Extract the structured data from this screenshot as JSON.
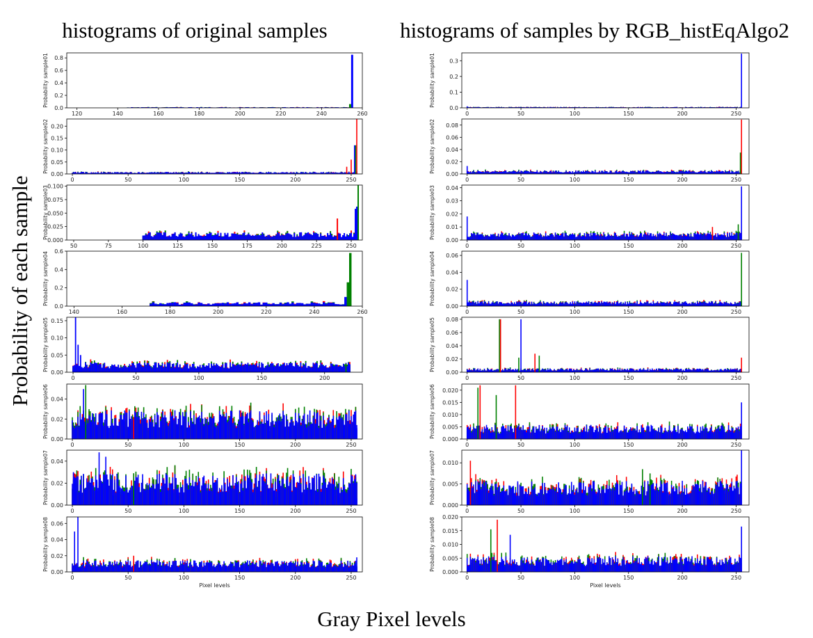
{
  "figure": {
    "left_title": "histograms of original samples",
    "right_title": "histograms of samples by RGB_histEqAlgo2",
    "y_title": "Probability of each sample",
    "x_title": "Gray Pixel levels",
    "panel_xlabel": "Pixel levels"
  },
  "colors": {
    "red": "#ff0000",
    "green": "#008000",
    "blue": "#0000ff"
  },
  "chart_data": [
    {
      "type": "bar",
      "panel": "left-1",
      "ylabel": "Probability sample01",
      "xlim": [
        115,
        260
      ],
      "xticks": [
        120,
        140,
        160,
        180,
        200,
        220,
        240,
        260
      ],
      "ylim": [
        0,
        0.88
      ],
      "yticks": [
        0.0,
        0.2,
        0.4,
        0.6,
        0.8
      ],
      "ytick_labels": [
        "0.0",
        "0.2",
        "0.4",
        "0.6",
        "0.8"
      ],
      "support": [
        145,
        255
      ],
      "peaks": [
        {
          "x": 255,
          "c": "blue",
          "v": 0.85
        },
        {
          "x": 254,
          "c": "green",
          "v": 0.06
        }
      ],
      "base_level": 0.008
    },
    {
      "type": "bar",
      "panel": "left-2",
      "ylabel": "Probability sample02",
      "xlim": [
        -5,
        260
      ],
      "xticks": [
        0,
        50,
        100,
        150,
        200,
        250
      ],
      "ylim": [
        0,
        0.23
      ],
      "yticks": [
        0.0,
        0.05,
        0.1,
        0.15,
        0.2
      ],
      "ytick_labels": [
        "0.00",
        "0.05",
        "0.10",
        "0.15",
        "0.20"
      ],
      "support": [
        0,
        255
      ],
      "peaks": [
        {
          "x": 255,
          "c": "red",
          "v": 0.23
        },
        {
          "x": 254,
          "c": "green",
          "v": 0.12
        },
        {
          "x": 253,
          "c": "blue",
          "v": 0.12
        },
        {
          "x": 250,
          "c": "red",
          "v": 0.06
        },
        {
          "x": 246,
          "c": "red",
          "v": 0.03
        }
      ],
      "base_level": 0.006
    },
    {
      "type": "bar",
      "panel": "left-3",
      "ylabel": "Probability sample03",
      "xlim": [
        45,
        258
      ],
      "xticks": [
        50,
        75,
        100,
        125,
        150,
        175,
        200,
        225,
        250
      ],
      "ylim": [
        0,
        0.102
      ],
      "yticks": [
        0.0,
        0.025,
        0.05,
        0.075,
        0.1
      ],
      "ytick_labels": [
        "0.000",
        "0.025",
        "0.050",
        "0.075",
        "0.100"
      ],
      "support": [
        100,
        255
      ],
      "peaks": [
        {
          "x": 255,
          "c": "green",
          "v": 0.102
        },
        {
          "x": 254,
          "c": "blue",
          "v": 0.062
        },
        {
          "x": 253,
          "c": "blue",
          "v": 0.058
        },
        {
          "x": 240,
          "c": "red",
          "v": 0.04
        }
      ],
      "base_level": 0.01
    },
    {
      "type": "bar",
      "panel": "left-4",
      "ylabel": "Probability sample04",
      "xlim": [
        137,
        260
      ],
      "xticks": [
        140,
        160,
        180,
        200,
        220,
        240,
        260
      ],
      "ylim": [
        0,
        0.6
      ],
      "yticks": [
        0.0,
        0.2,
        0.4,
        0.6
      ],
      "ytick_labels": [
        "0.0",
        "0.2",
        "0.4",
        "0.6"
      ],
      "support": [
        172,
        255
      ],
      "peaks": [
        {
          "x": 255,
          "c": "green",
          "v": 0.58
        },
        {
          "x": 254,
          "c": "green",
          "v": 0.26
        },
        {
          "x": 253,
          "c": "blue",
          "v": 0.1
        }
      ],
      "base_level": 0.03
    },
    {
      "type": "bar",
      "panel": "left-5",
      "ylabel": "Probability sample05",
      "xlim": [
        -5,
        230
      ],
      "xticks": [
        0,
        50,
        100,
        150,
        200
      ],
      "ylim": [
        0,
        0.16
      ],
      "yticks": [
        0.0,
        0.05,
        0.1,
        0.15
      ],
      "ytick_labels": [
        "0.00",
        "0.05",
        "0.10",
        "0.15"
      ],
      "support": [
        0,
        220
      ],
      "peaks": [
        {
          "x": 2,
          "c": "blue",
          "v": 0.17
        },
        {
          "x": 4,
          "c": "blue",
          "v": 0.08
        },
        {
          "x": 6,
          "c": "blue",
          "v": 0.05
        },
        {
          "x": 217,
          "c": "green",
          "v": 0.025
        },
        {
          "x": 219,
          "c": "blue",
          "v": 0.028
        }
      ],
      "base_level": 0.02
    },
    {
      "type": "bar",
      "panel": "left-6",
      "ylabel": "Probability sample06",
      "xlim": [
        -5,
        260
      ],
      "xticks": [
        0,
        50,
        100,
        150,
        200,
        250
      ],
      "ylim": [
        0,
        0.055
      ],
      "yticks": [
        0.0,
        0.02,
        0.04
      ],
      "ytick_labels": [
        "0.00",
        "0.02",
        "0.04"
      ],
      "support": [
        0,
        255
      ],
      "peaks": [
        {
          "x": 12,
          "c": "green",
          "v": 0.054
        },
        {
          "x": 10,
          "c": "blue",
          "v": 0.05
        },
        {
          "x": 55,
          "c": "red",
          "v": 0.02
        },
        {
          "x": 255,
          "c": "blue",
          "v": 0.014
        }
      ],
      "base_level": 0.02
    },
    {
      "type": "bar",
      "panel": "left-7",
      "ylabel": "Probability sample07",
      "xlim": [
        -5,
        260
      ],
      "xticks": [
        0,
        50,
        100,
        150,
        200,
        250
      ],
      "ylim": [
        0,
        0.05
      ],
      "yticks": [
        0.0,
        0.02,
        0.04
      ],
      "ytick_labels": [
        "0.00",
        "0.02",
        "0.04"
      ],
      "support": [
        0,
        255
      ],
      "peaks": [
        {
          "x": 24,
          "c": "blue",
          "v": 0.048
        },
        {
          "x": 30,
          "c": "blue",
          "v": 0.044
        },
        {
          "x": 1,
          "c": "blue",
          "v": 0.03
        },
        {
          "x": 55,
          "c": "green",
          "v": 0.029
        },
        {
          "x": 255,
          "c": "blue",
          "v": 0.006
        }
      ],
      "base_level": 0.02
    },
    {
      "type": "bar",
      "panel": "left-8",
      "ylabel": "Probability sample08",
      "xlim": [
        -5,
        260
      ],
      "xticks": [
        0,
        50,
        100,
        150,
        200,
        250
      ],
      "ylim": [
        0,
        0.068
      ],
      "yticks": [
        0.0,
        0.02,
        0.04,
        0.06
      ],
      "ytick_labels": [
        "0.00",
        "0.02",
        "0.04",
        "0.06"
      ],
      "support": [
        0,
        255
      ],
      "peaks": [
        {
          "x": 5,
          "c": "blue",
          "v": 0.068
        },
        {
          "x": 2,
          "c": "blue",
          "v": 0.05
        },
        {
          "x": 55,
          "c": "red",
          "v": 0.02
        },
        {
          "x": 255,
          "c": "blue",
          "v": 0.018
        }
      ],
      "base_level": 0.01
    },
    {
      "type": "bar",
      "panel": "right-1",
      "ylabel": "Probability sample01",
      "xlim": [
        -5,
        262
      ],
      "xticks": [
        0,
        50,
        100,
        150,
        200,
        250
      ],
      "ylim": [
        0,
        0.35
      ],
      "yticks": [
        0.0,
        0.1,
        0.2,
        0.3
      ],
      "ytick_labels": [
        "0.0",
        "0.1",
        "0.2",
        "0.3"
      ],
      "support": [
        0,
        255
      ],
      "peaks": [
        {
          "x": 255,
          "c": "blue",
          "v": 0.345
        },
        {
          "x": 0,
          "c": "blue",
          "v": 0.01
        }
      ],
      "base_level": 0.004
    },
    {
      "type": "bar",
      "panel": "right-2",
      "ylabel": "Probability sample02",
      "xlim": [
        -5,
        262
      ],
      "xticks": [
        0,
        50,
        100,
        150,
        200,
        250
      ],
      "ylim": [
        0,
        0.09
      ],
      "yticks": [
        0.0,
        0.02,
        0.04,
        0.06,
        0.08
      ],
      "ytick_labels": [
        "0.00",
        "0.02",
        "0.04",
        "0.06",
        "0.08"
      ],
      "support": [
        0,
        255
      ],
      "peaks": [
        {
          "x": 255,
          "c": "red",
          "v": 0.089
        },
        {
          "x": 254,
          "c": "green",
          "v": 0.035
        },
        {
          "x": 0,
          "c": "blue",
          "v": 0.013
        }
      ],
      "base_level": 0.004
    },
    {
      "type": "bar",
      "panel": "right-3",
      "ylabel": "Probability sample03",
      "xlim": [
        -5,
        262
      ],
      "xticks": [
        0,
        50,
        100,
        150,
        200,
        250
      ],
      "ylim": [
        0,
        0.042
      ],
      "yticks": [
        0.0,
        0.01,
        0.02,
        0.03,
        0.04
      ],
      "ytick_labels": [
        "0.00",
        "0.01",
        "0.02",
        "0.03",
        "0.04"
      ],
      "support": [
        0,
        255
      ],
      "peaks": [
        {
          "x": 255,
          "c": "blue",
          "v": 0.041
        },
        {
          "x": 0,
          "c": "blue",
          "v": 0.018
        },
        {
          "x": 228,
          "c": "red",
          "v": 0.01
        },
        {
          "x": 252,
          "c": "green",
          "v": 0.012
        }
      ],
      "base_level": 0.004
    },
    {
      "type": "bar",
      "panel": "right-4",
      "ylabel": "Probability sample04",
      "xlim": [
        -5,
        262
      ],
      "xticks": [
        0,
        50,
        100,
        150,
        200,
        250
      ],
      "ylim": [
        0,
        0.065
      ],
      "yticks": [
        0.0,
        0.02,
        0.04,
        0.06
      ],
      "ytick_labels": [
        "0.00",
        "0.02",
        "0.04",
        "0.06"
      ],
      "support": [
        0,
        255
      ],
      "peaks": [
        {
          "x": 255,
          "c": "green",
          "v": 0.063
        },
        {
          "x": 0,
          "c": "blue",
          "v": 0.031
        }
      ],
      "base_level": 0.004
    },
    {
      "type": "bar",
      "panel": "right-5",
      "ylabel": "Probability sample05",
      "xlim": [
        -5,
        262
      ],
      "xticks": [
        0,
        50,
        100,
        150,
        200,
        250
      ],
      "ylim": [
        0,
        0.083
      ],
      "yticks": [
        0.0,
        0.02,
        0.04,
        0.06,
        0.08
      ],
      "ytick_labels": [
        "0.00",
        "0.02",
        "0.04",
        "0.06",
        "0.08"
      ],
      "support": [
        0,
        255
      ],
      "peaks": [
        {
          "x": 30,
          "c": "green",
          "v": 0.08
        },
        {
          "x": 31,
          "c": "red",
          "v": 0.08
        },
        {
          "x": 50,
          "c": "blue",
          "v": 0.08
        },
        {
          "x": 48,
          "c": "green",
          "v": 0.022
        },
        {
          "x": 63,
          "c": "red",
          "v": 0.028
        },
        {
          "x": 67,
          "c": "green",
          "v": 0.025
        },
        {
          "x": 255,
          "c": "red",
          "v": 0.022
        }
      ],
      "base_level": 0.004
    },
    {
      "type": "bar",
      "panel": "right-6",
      "ylabel": "Probability sample06",
      "xlim": [
        -5,
        262
      ],
      "xticks": [
        0,
        50,
        100,
        150,
        200,
        250
      ],
      "ylim": [
        0,
        0.0225
      ],
      "yticks": [
        0.0,
        0.005,
        0.01,
        0.015,
        0.02
      ],
      "ytick_labels": [
        "0.000",
        "0.005",
        "0.010",
        "0.015",
        "0.020"
      ],
      "support": [
        0,
        255
      ],
      "peaks": [
        {
          "x": 10,
          "c": "green",
          "v": 0.021
        },
        {
          "x": 12,
          "c": "red",
          "v": 0.022
        },
        {
          "x": 27,
          "c": "green",
          "v": 0.018
        },
        {
          "x": 45,
          "c": "red",
          "v": 0.022
        },
        {
          "x": 255,
          "c": "blue",
          "v": 0.015
        }
      ],
      "base_level": 0.004
    },
    {
      "type": "bar",
      "panel": "right-7",
      "ylabel": "Probability sample07",
      "xlim": [
        -5,
        262
      ],
      "xticks": [
        0,
        50,
        100,
        150,
        200,
        250
      ],
      "ylim": [
        0,
        0.013
      ],
      "yticks": [
        0.0,
        0.005,
        0.01
      ],
      "ytick_labels": [
        "0.000",
        "0.005",
        "0.010"
      ],
      "support": [
        0,
        255
      ],
      "peaks": [
        {
          "x": 255,
          "c": "blue",
          "v": 0.013
        },
        {
          "x": 3,
          "c": "red",
          "v": 0.0105
        },
        {
          "x": 163,
          "c": "green",
          "v": 0.0085
        },
        {
          "x": 170,
          "c": "green",
          "v": 0.0075
        }
      ],
      "base_level": 0.004
    },
    {
      "type": "bar",
      "panel": "right-8",
      "ylabel": "Probability sample08",
      "xlim": [
        -5,
        262
      ],
      "xticks": [
        0,
        50,
        100,
        150,
        200,
        250
      ],
      "ylim": [
        0,
        0.02
      ],
      "yticks": [
        0.0,
        0.005,
        0.01,
        0.015,
        0.02
      ],
      "ytick_labels": [
        "0.000",
        "0.005",
        "0.010",
        "0.015",
        "0.020"
      ],
      "support": [
        0,
        255
      ],
      "peaks": [
        {
          "x": 28,
          "c": "red",
          "v": 0.019
        },
        {
          "x": 255,
          "c": "blue",
          "v": 0.0165
        },
        {
          "x": 40,
          "c": "blue",
          "v": 0.0135
        },
        {
          "x": 22,
          "c": "green",
          "v": 0.0155
        }
      ],
      "base_level": 0.004
    }
  ]
}
